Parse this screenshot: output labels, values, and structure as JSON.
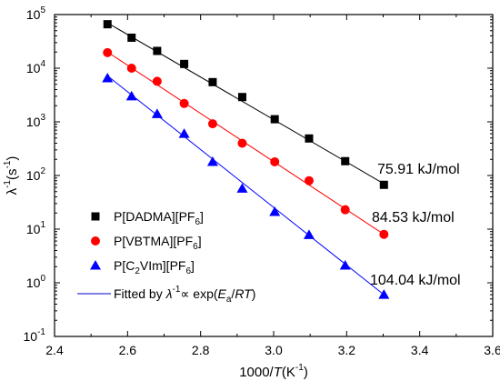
{
  "chart_data": {
    "type": "scatter",
    "xlabel": {
      "pre": "1000/",
      "italic": "T",
      "post": "(K",
      "sup": "-1",
      "end": ")"
    },
    "ylabel": {
      "pre": "λ",
      "sup1": "-1",
      "mid": "(s",
      "sup2": "-1",
      "end": ")"
    },
    "xlim": [
      2.4,
      3.6
    ],
    "ylim": [
      0.1,
      100000
    ],
    "yscale": "log",
    "x_ticks": [
      "2.4",
      "2.6",
      "2.8",
      "3.0",
      "3.2",
      "3.4",
      "3.6"
    ],
    "y_ticks": [
      {
        "base": "10",
        "exp": "-1",
        "value": 0.1
      },
      {
        "base": "10",
        "exp": "0",
        "value": 1
      },
      {
        "base": "10",
        "exp": "1",
        "value": 10
      },
      {
        "base": "10",
        "exp": "2",
        "value": 100
      },
      {
        "base": "10",
        "exp": "3",
        "value": 1000
      },
      {
        "base": "10",
        "exp": "4",
        "value": 10000
      },
      {
        "base": "10",
        "exp": "5",
        "value": 100000
      }
    ],
    "legend_position": "lower-left",
    "series": [
      {
        "name": "P[DADMA][PF6]",
        "label_main": "P[DADMA][PF",
        "label_sub": "6",
        "label_end": "]",
        "color": "#000000",
        "marker": "square",
        "x": [
          2.545,
          2.611,
          2.681,
          2.755,
          2.833,
          2.914,
          3.003,
          3.097,
          3.196,
          3.302
        ],
        "y": [
          66000,
          37000,
          21000,
          12000,
          5500,
          2900,
          1120,
          490,
          185,
          67
        ],
        "fit": {
          "x": [
            2.545,
            3.302
          ],
          "y": [
            70000,
            70
          ]
        },
        "annotation": "75.91 kJ/mol"
      },
      {
        "name": "P[VBTMA][PF6]",
        "label_main": "P[VBTMA][PF",
        "label_sub": "6",
        "label_end": "]",
        "color": "#ff0000",
        "marker": "circle",
        "x": [
          2.545,
          2.611,
          2.681,
          2.755,
          2.833,
          2.914,
          3.003,
          3.097,
          3.196,
          3.302
        ],
        "y": [
          19500,
          10000,
          5700,
          2200,
          920,
          400,
          180,
          80,
          23,
          8
        ],
        "fit": {
          "x": [
            2.545,
            3.302
          ],
          "y": [
            20000,
            8
          ]
        },
        "annotation": "84.53 kJ/mol"
      },
      {
        "name": "P[C2VIm][PF6]",
        "label_main": "P[C",
        "label_sub": "2",
        "label_mid": "VIm][PF",
        "label_sub2": "6",
        "label_end": "]",
        "color": "#0000ff",
        "marker": "triangle",
        "x": [
          2.545,
          2.611,
          2.681,
          2.755,
          2.833,
          2.914,
          3.003,
          3.097,
          3.196,
          3.302
        ],
        "y": [
          6500,
          3000,
          1400,
          600,
          180,
          57,
          21,
          7.8,
          2.1,
          0.6
        ],
        "fit": {
          "x": [
            2.545,
            3.302
          ],
          "y": [
            7200,
            0.6
          ]
        },
        "annotation": "104.04 kJ/mol"
      }
    ],
    "fit_legend": {
      "pre": "Fitted by ",
      "lambda": "λ",
      "sup": "-1",
      "prop": "∝ exp(",
      "ea": "E",
      "ea_sub": "a",
      "slash": "/",
      "rt": "RT",
      "end": ")",
      "color": "#0000cc"
    }
  }
}
